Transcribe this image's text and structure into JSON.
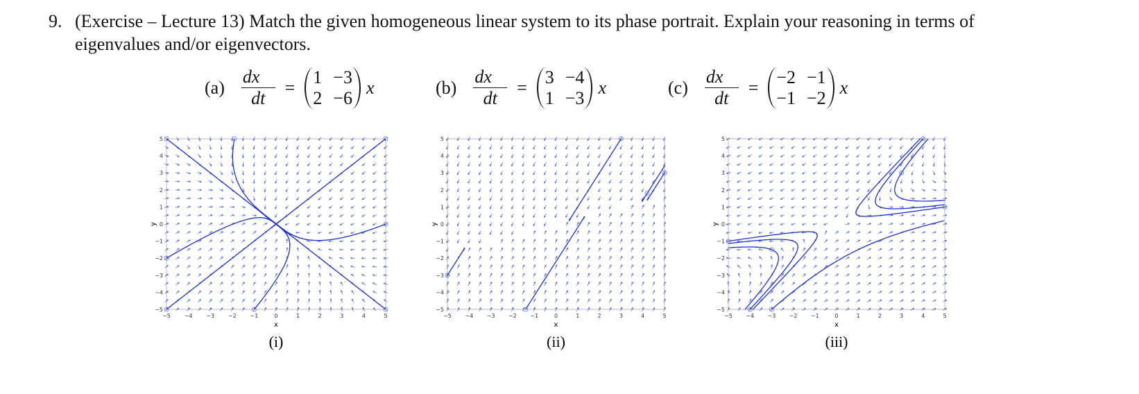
{
  "question": {
    "number": "9.",
    "text": "(Exercise – Lecture 13) Match the given homogeneous linear system to its phase portrait. Explain your reasoning in terms of eigenvalues and/or eigenvectors."
  },
  "systems": [
    {
      "label": "(a)",
      "numerator": "dx⃗",
      "denominator": "dt",
      "relation": "=",
      "matrix": [
        [
          1,
          -3
        ],
        [
          2,
          -6
        ]
      ],
      "vector": "x⃗"
    },
    {
      "label": "(b)",
      "numerator": "dx⃗",
      "denominator": "dt",
      "relation": "=",
      "matrix": [
        [
          3,
          -4
        ],
        [
          1,
          -3
        ]
      ],
      "vector": "x⃗"
    },
    {
      "label": "(c)",
      "numerator": "dx⃗",
      "denominator": "dt",
      "relation": "=",
      "matrix": [
        [
          -2,
          -1
        ],
        [
          -1,
          -2
        ]
      ],
      "vector": "x⃗"
    }
  ],
  "portraits": [
    {
      "label": "(i)",
      "x_label": "x",
      "y_label": "y",
      "xlim": [
        -5,
        5
      ],
      "ylim": [
        -5,
        5
      ],
      "xticks": [
        -5,
        -4,
        -3,
        -2,
        -1,
        0,
        1,
        2,
        3,
        4,
        5
      ],
      "yticks": [
        -5,
        -4,
        -3,
        -2,
        -1,
        0,
        1,
        2,
        3,
        4,
        5
      ]
    },
    {
      "label": "(ii)",
      "x_label": "x",
      "y_label": "y",
      "xlim": [
        -5,
        5
      ],
      "ylim": [
        -5,
        5
      ],
      "xticks": [
        -5,
        -4,
        -3,
        -2,
        -1,
        0,
        1,
        2,
        3,
        4,
        5
      ],
      "yticks": [
        -5,
        -4,
        -3,
        -2,
        -1,
        0,
        1,
        2,
        3,
        4,
        5
      ]
    },
    {
      "label": "(iii)",
      "x_label": "x",
      "y_label": "y",
      "xlim": [
        -5,
        5
      ],
      "ylim": [
        -5,
        5
      ],
      "xticks": [
        -5,
        -4,
        -3,
        -2,
        -1,
        0,
        1,
        2,
        3,
        4,
        5
      ],
      "yticks": [
        -5,
        -4,
        -3,
        -2,
        -1,
        0,
        1,
        2,
        3,
        4,
        5
      ]
    }
  ]
}
